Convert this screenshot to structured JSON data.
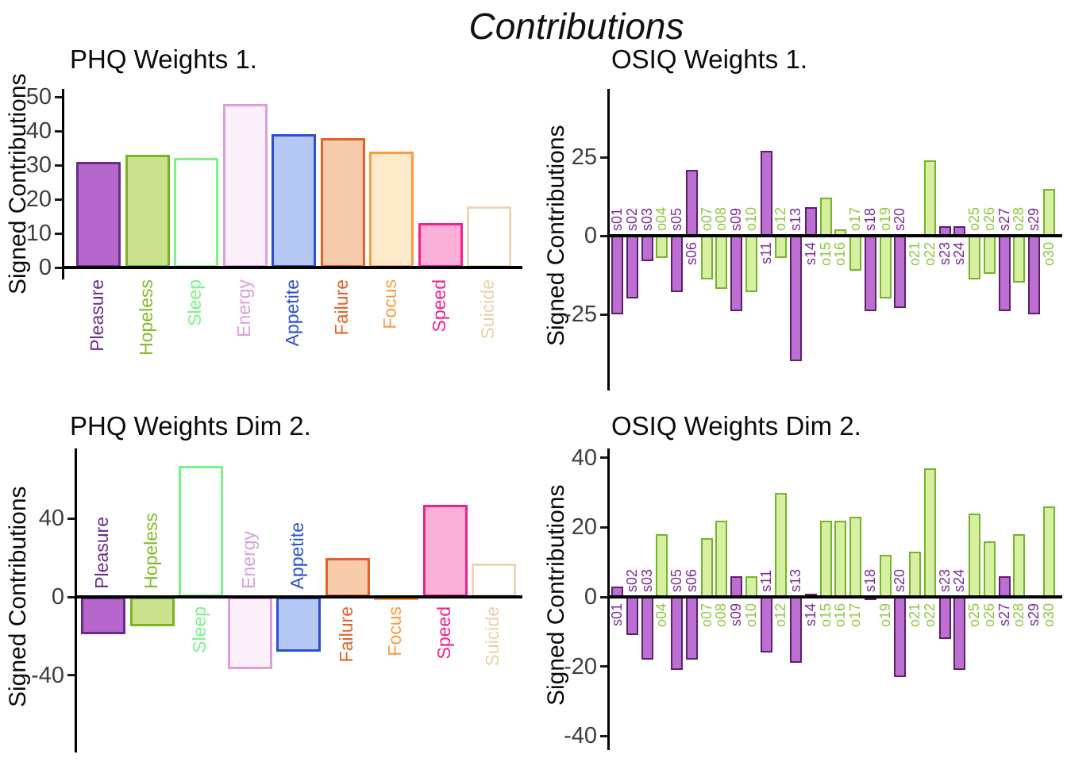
{
  "figure_title": "Contributions",
  "axis_color": "#000000",
  "tick_label_color": "#3d3d3d",
  "chart_data": [
    {
      "id": "phq-weights-1",
      "type": "bar",
      "title": "PHQ Weights 1.",
      "ylabel": "Signed Contributions",
      "yticks": [
        50,
        40,
        30,
        20,
        10,
        0
      ],
      "ylim": [
        0,
        53
      ],
      "grid": false,
      "label_position_rule": "category labels placed on opposite side of zero line from bar",
      "categories": [
        "Pleasure",
        "Hopeless",
        "Sleep",
        "Energy",
        "Appetite",
        "Failure",
        "Focus",
        "Speed",
        "Suicide"
      ],
      "values": [
        31,
        33,
        32,
        48,
        39,
        38,
        34,
        13,
        18
      ],
      "items": [
        {
          "fill": "#b767cb",
          "stroke": "#692c8c",
          "label_color": "#692c8c"
        },
        {
          "fill": "#cce18e",
          "stroke": "#77b41f",
          "label_color": "#82ba2a"
        },
        {
          "fill": "#ffffff",
          "stroke": "#7df287",
          "label_color": "#7df287"
        },
        {
          "fill": "#fcf0fa",
          "stroke": "#dc9edf",
          "label_color": "#d8a0dc"
        },
        {
          "fill": "#b5c9f4",
          "stroke": "#2c4fd6",
          "label_color": "#2c4fd6"
        },
        {
          "fill": "#f6ccac",
          "stroke": "#e2622b",
          "label_color": "#e2622b"
        },
        {
          "fill": "#fdeacb",
          "stroke": "#f89b41",
          "label_color": "#f89b41"
        },
        {
          "fill": "#fbb1d7",
          "stroke": "#f0218c",
          "label_color": "#f0218c"
        },
        {
          "fill": "#ffffff",
          "stroke": "#ebd7b6",
          "label_color": "#e9d2ac"
        }
      ]
    },
    {
      "id": "osiq-weights-1",
      "type": "bar",
      "title": "OSIQ Weights 1.",
      "ylabel": "Signed Contributions",
      "yticks": [
        25,
        0,
        -25
      ],
      "ylim": [
        -49,
        46
      ],
      "grid": false,
      "label_position_rule": "category labels placed on opposite side of zero line from bar",
      "categories": [
        "s01",
        "s02",
        "s03",
        "o04",
        "s05",
        "s06",
        "o07",
        "o08",
        "s09",
        "o10",
        "s11",
        "o12",
        "s13",
        "s14",
        "o15",
        "o16",
        "o17",
        "s18",
        "o19",
        "s20",
        "o21",
        "o22",
        "s23",
        "s24",
        "o25",
        "o26",
        "s27",
        "o28",
        "s29",
        "o30"
      ],
      "values": [
        -25,
        -20,
        -8,
        -7,
        -18,
        21,
        -14,
        -17,
        -24,
        -18,
        27,
        -7,
        -40,
        9,
        12,
        2,
        -11,
        -24,
        -20,
        -23,
        0.5,
        24,
        3,
        3,
        -14,
        -12,
        -24,
        -15,
        -25,
        15
      ],
      "group_colors": {
        "s": {
          "fill": "#bd6ed2",
          "stroke": "#5e2069",
          "label_color": "#7b2b94"
        },
        "o": {
          "fill": "#d7efa0",
          "stroke": "#75b42a",
          "label_color": "#8ec63e"
        }
      }
    },
    {
      "id": "phq-weights-dim-2",
      "type": "bar",
      "title": "PHQ Weights Dim 2.",
      "ylabel": "Signed Contributions",
      "yticks": [
        40,
        0,
        -40
      ],
      "ylim": [
        -78,
        76
      ],
      "grid": false,
      "label_position_rule": "category labels placed on opposite side of zero line from bar",
      "categories": [
        "Pleasure",
        "Hopeless",
        "Sleep",
        "Energy",
        "Appetite",
        "Failure",
        "Focus",
        "Speed",
        "Suicide"
      ],
      "values": [
        -19,
        -15,
        67,
        -37,
        -28,
        20,
        1,
        47,
        17
      ],
      "items": [
        {
          "fill": "#b767cb",
          "stroke": "#692c8c",
          "label_color": "#692c8c"
        },
        {
          "fill": "#cce18e",
          "stroke": "#77b41f",
          "label_color": "#82ba2a"
        },
        {
          "fill": "#ffffff",
          "stroke": "#7df287",
          "label_color": "#7df287"
        },
        {
          "fill": "#fcf0fa",
          "stroke": "#dc9edf",
          "label_color": "#d8a0dc"
        },
        {
          "fill": "#b5c9f4",
          "stroke": "#2c4fd6",
          "label_color": "#2c4fd6"
        },
        {
          "fill": "#f6ccac",
          "stroke": "#e2622b",
          "label_color": "#e2622b"
        },
        {
          "fill": "#fdeacb",
          "stroke": "#f89b41",
          "label_color": "#f89b41"
        },
        {
          "fill": "#fbb1d7",
          "stroke": "#f0218c",
          "label_color": "#f0218c"
        },
        {
          "fill": "#ffffff",
          "stroke": "#ebd7b6",
          "label_color": "#e9d2ac"
        }
      ]
    },
    {
      "id": "osiq-weights-dim-2",
      "type": "bar",
      "title": "OSIQ Weights Dim 2.",
      "ylabel": "Signed Contributions",
      "yticks": [
        40,
        20,
        0,
        -20,
        -40
      ],
      "ylim": [
        -43,
        43
      ],
      "grid": false,
      "label_position_rule": "category labels placed on opposite side of zero line from bar",
      "categories": [
        "s01",
        "s02",
        "s03",
        "o04",
        "s05",
        "s06",
        "o07",
        "o08",
        "s09",
        "o10",
        "s11",
        "o12",
        "s13",
        "s14",
        "o15",
        "o16",
        "o17",
        "s18",
        "o19",
        "s20",
        "o21",
        "o22",
        "s23",
        "s24",
        "o25",
        "o26",
        "s27",
        "o28",
        "s29",
        "o30"
      ],
      "values": [
        3,
        -11,
        -18,
        18,
        -21,
        -18,
        17,
        22,
        6,
        6,
        -16,
        30,
        -19,
        1,
        22,
        22,
        23,
        -1,
        12,
        -23,
        13,
        37,
        -12,
        -21,
        24,
        16,
        6,
        18,
        0,
        26
      ],
      "group_colors": {
        "s": {
          "fill": "#bd6ed2",
          "stroke": "#5e2069",
          "label_color": "#7b2b94"
        },
        "o": {
          "fill": "#d7efa0",
          "stroke": "#75b42a",
          "label_color": "#8ec63e"
        }
      }
    }
  ]
}
